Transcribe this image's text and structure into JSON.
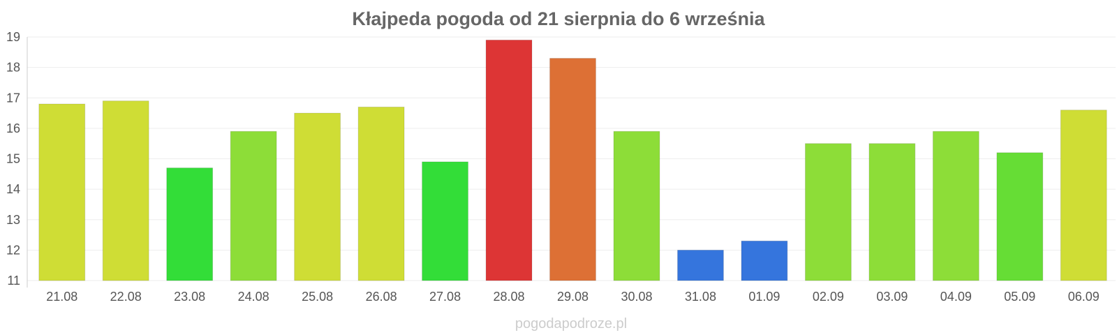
{
  "chart_data": {
    "type": "bar",
    "title": "Kłajpeda pogoda od 21 sierpnia do 6 września",
    "xlabel": "",
    "ylabel": "",
    "ylim": [
      11,
      19
    ],
    "yticks": [
      11,
      12,
      13,
      14,
      15,
      16,
      17,
      18,
      19
    ],
    "grid": true,
    "categories": [
      "21.08",
      "22.08",
      "23.08",
      "24.08",
      "25.08",
      "26.08",
      "27.08",
      "28.08",
      "29.08",
      "30.08",
      "31.08",
      "01.09",
      "02.09",
      "03.09",
      "04.09",
      "05.09",
      "06.09"
    ],
    "values": [
      16.8,
      16.9,
      14.7,
      15.9,
      16.5,
      16.7,
      14.9,
      18.9,
      18.3,
      15.9,
      12.0,
      12.3,
      15.5,
      15.5,
      15.9,
      15.2,
      16.6
    ],
    "colors": [
      "#cfdd35",
      "#cfdd35",
      "#33dd38",
      "#8ddd38",
      "#cfdd35",
      "#cfdd35",
      "#33dd38",
      "#dd3535",
      "#dd7035",
      "#8ddd38",
      "#3575dd",
      "#3575dd",
      "#8ddd38",
      "#8ddd38",
      "#8ddd38",
      "#66dd35",
      "#cfdd35"
    ]
  },
  "footer": {
    "watermark": "pogodapodroze.pl"
  }
}
